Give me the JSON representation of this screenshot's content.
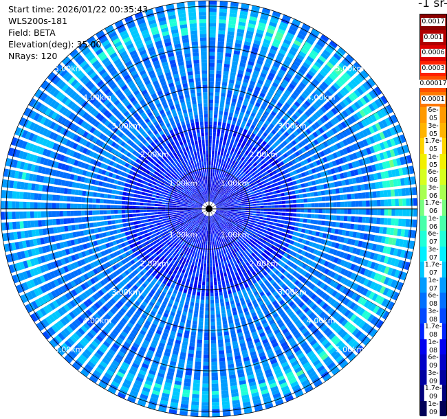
{
  "header": {
    "start_time": "Start time: 2026/01/22 00:35:43",
    "instrument": "WLS200s-181",
    "field": "Field: BETA",
    "elevation": "Elevation(deg): 35.00",
    "nrays": "NRays: 120"
  },
  "units_label": "-1 sr-",
  "colorbar": {
    "labels": [
      "0.0017",
      "0.001",
      "0.0006",
      "0.0003",
      "0.00017",
      "0.0001",
      "6e-05",
      "3e-05",
      "1.7e-05",
      "1e-05",
      "6e-06",
      "3e-06",
      "1.7e-06",
      "1e-06",
      "6e-07",
      "3e-07",
      "1.7e-07",
      "1e-07",
      "6e-08",
      "3e-08",
      "1.7e-08",
      "1e-08",
      "6e-09",
      "3e-09",
      "1.7e-09",
      "1e-09"
    ],
    "colors": [
      "#8b0000",
      "#b00000",
      "#dd0000",
      "#ff2000",
      "#ff5000",
      "#ff7800",
      "#ff9a00",
      "#ffb400",
      "#ffd400",
      "#f2f000",
      "#d6ff1e",
      "#a8ff50",
      "#78ff80",
      "#48ffaa",
      "#20ffd8",
      "#00f0ff",
      "#00c8ff",
      "#009cff",
      "#0070ff",
      "#0048ff",
      "#0024ff",
      "#0000f0",
      "#0000c8",
      "#0000a0",
      "#00007c",
      "#000058"
    ],
    "dark_text_from": 9
  },
  "chart_data": {
    "type": "ppi",
    "field": "BETA",
    "nrays": 120,
    "elevation_deg": 35.0,
    "range_rings_km": [
      1,
      2,
      3,
      4,
      5
    ],
    "max_range_km": 5.2,
    "ring_labels": [
      "1.00km",
      "2.00km",
      "3.00km",
      "4.00km",
      "5.00km"
    ],
    "enhanced_band_km": [
      4.2,
      4.9
    ],
    "scale": "log"
  }
}
